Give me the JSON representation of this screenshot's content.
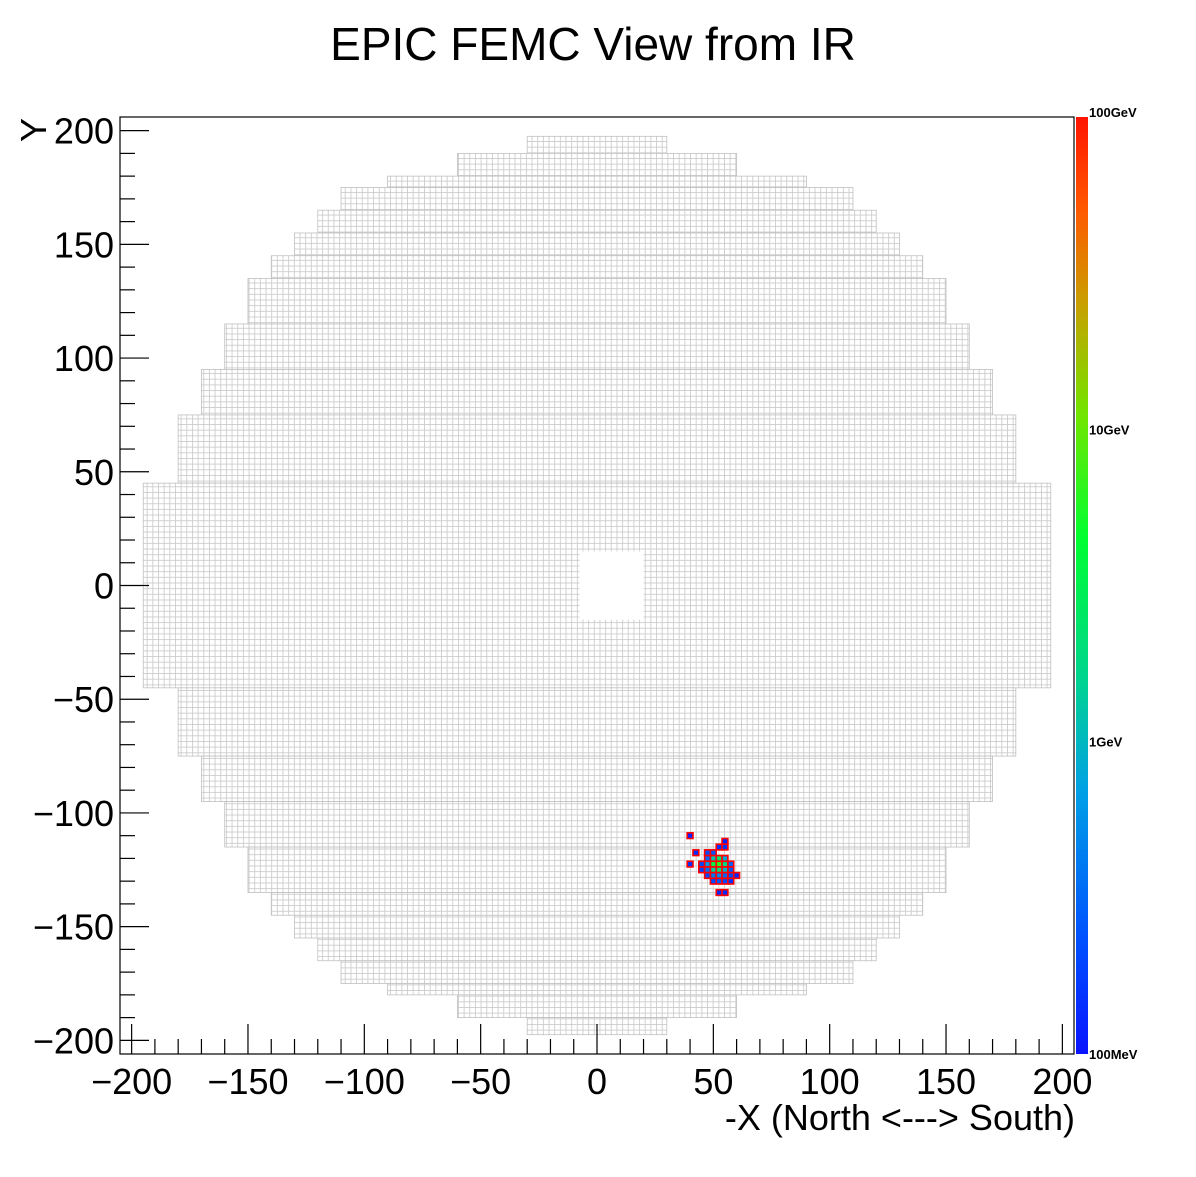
{
  "chart_data": {
    "type": "heatmap",
    "title": "EPIC FEMC View from IR",
    "xlabel": "-X (North <---> South)",
    "ylabel": "Y",
    "xlim": [
      -205,
      205
    ],
    "ylim": [
      -206,
      206
    ],
    "xticks": [
      -200,
      -150,
      -100,
      -50,
      0,
      50,
      100,
      150,
      200
    ],
    "yticks": [
      -200,
      -150,
      -100,
      -50,
      0,
      50,
      100,
      150,
      200
    ],
    "tick_labels_x": [
      "−200",
      "−150",
      "−100",
      "−50",
      "0",
      "50",
      "100",
      "150",
      "200"
    ],
    "tick_labels_y": [
      "−200",
      "−150",
      "−100",
      "−50",
      "0",
      "50",
      "100",
      "150",
      "200"
    ],
    "colorbar": {
      "scale": "log",
      "range_gev": [
        0.1,
        100
      ],
      "labels": [
        {
          "text": "100GeV",
          "value_gev": 100
        },
        {
          "text": "10GeV",
          "value_gev": 10
        },
        {
          "text": "1GeV",
          "value_gev": 1
        },
        {
          "text": "100MeV",
          "value_gev": 0.1
        }
      ]
    },
    "detector": {
      "tower_size": 2.5,
      "outline_color": "#c8c8c8",
      "beam_hole": {
        "x": [
          -7.5,
          20
        ],
        "y": [
          -15,
          15
        ]
      },
      "row_extents": [
        {
          "y": [
            190,
            197.5
          ],
          "x": [
            -30,
            30
          ]
        },
        {
          "y": [
            180,
            190
          ],
          "x": [
            -60,
            60
          ]
        },
        {
          "y": [
            175,
            180
          ],
          "x": [
            -90,
            90
          ]
        },
        {
          "y": [
            165,
            175
          ],
          "x": [
            -110,
            110
          ]
        },
        {
          "y": [
            155,
            165
          ],
          "x": [
            -120,
            120
          ]
        },
        {
          "y": [
            145,
            155
          ],
          "x": [
            -130,
            130
          ]
        },
        {
          "y": [
            135,
            145
          ],
          "x": [
            -140,
            140
          ]
        },
        {
          "y": [
            115,
            135
          ],
          "x": [
            -150,
            150
          ]
        },
        {
          "y": [
            95,
            115
          ],
          "x": [
            -160,
            160
          ]
        },
        {
          "y": [
            75,
            95
          ],
          "x": [
            -170,
            170
          ]
        },
        {
          "y": [
            45,
            75
          ],
          "x": [
            -180,
            180
          ]
        },
        {
          "y": [
            -45,
            45
          ],
          "x": [
            -195,
            195
          ]
        },
        {
          "y": [
            -75,
            -45
          ],
          "x": [
            -180,
            180
          ]
        },
        {
          "y": [
            -95,
            -75
          ],
          "x": [
            -170,
            170
          ]
        },
        {
          "y": [
            -115,
            -95
          ],
          "x": [
            -160,
            160
          ]
        },
        {
          "y": [
            -135,
            -115
          ],
          "x": [
            -150,
            150
          ]
        },
        {
          "y": [
            -145,
            -135
          ],
          "x": [
            -140,
            140
          ]
        },
        {
          "y": [
            -155,
            -145
          ],
          "x": [
            -130,
            130
          ]
        },
        {
          "y": [
            -165,
            -155
          ],
          "x": [
            -120,
            120
          ]
        },
        {
          "y": [
            -175,
            -165
          ],
          "x": [
            -110,
            110
          ]
        },
        {
          "y": [
            -180,
            -175
          ],
          "x": [
            -90,
            90
          ]
        },
        {
          "y": [
            -190,
            -180
          ],
          "x": [
            -60,
            60
          ]
        },
        {
          "y": [
            -197.5,
            -190
          ],
          "x": [
            -30,
            30
          ]
        }
      ]
    },
    "hits": [
      {
        "x": 40,
        "y": -110,
        "e_gev": 0.12
      },
      {
        "x": 40,
        "y": -122.5,
        "e_gev": 0.15
      },
      {
        "x": 42.5,
        "y": -117.5,
        "e_gev": 0.14
      },
      {
        "x": 45,
        "y": -122.5,
        "e_gev": 0.2
      },
      {
        "x": 45,
        "y": -125,
        "e_gev": 0.18
      },
      {
        "x": 47.5,
        "y": -117.5,
        "e_gev": 0.22
      },
      {
        "x": 47.5,
        "y": -120,
        "e_gev": 0.3
      },
      {
        "x": 47.5,
        "y": -122.5,
        "e_gev": 0.6
      },
      {
        "x": 47.5,
        "y": -125,
        "e_gev": 0.35
      },
      {
        "x": 47.5,
        "y": -127.5,
        "e_gev": 0.2
      },
      {
        "x": 50,
        "y": -117.5,
        "e_gev": 0.25
      },
      {
        "x": 50,
        "y": -120,
        "e_gev": 1.2
      },
      {
        "x": 50,
        "y": -122.5,
        "e_gev": 3.5
      },
      {
        "x": 50,
        "y": -125,
        "e_gev": 1.5
      },
      {
        "x": 50,
        "y": -127.5,
        "e_gev": 0.4
      },
      {
        "x": 50,
        "y": -130,
        "e_gev": 0.2
      },
      {
        "x": 52.5,
        "y": -115,
        "e_gev": 0.15
      },
      {
        "x": 52.5,
        "y": -120,
        "e_gev": 2.5
      },
      {
        "x": 52.5,
        "y": -122.5,
        "e_gev": 6
      },
      {
        "x": 52.5,
        "y": -125,
        "e_gev": 2.2
      },
      {
        "x": 52.5,
        "y": -127.5,
        "e_gev": 0.5
      },
      {
        "x": 52.5,
        "y": -130,
        "e_gev": 0.25
      },
      {
        "x": 52.5,
        "y": -135,
        "e_gev": 0.13
      },
      {
        "x": 55,
        "y": -112.5,
        "e_gev": 0.12
      },
      {
        "x": 55,
        "y": -115,
        "e_gev": 0.16
      },
      {
        "x": 55,
        "y": -120,
        "e_gev": 0.8
      },
      {
        "x": 55,
        "y": -122.5,
        "e_gev": 1.8
      },
      {
        "x": 55,
        "y": -125,
        "e_gev": 0.9
      },
      {
        "x": 55,
        "y": -127.5,
        "e_gev": 0.3
      },
      {
        "x": 55,
        "y": -130,
        "e_gev": 0.2
      },
      {
        "x": 55,
        "y": -135,
        "e_gev": 0.14
      },
      {
        "x": 57.5,
        "y": -122.5,
        "e_gev": 0.3
      },
      {
        "x": 57.5,
        "y": -125,
        "e_gev": 0.25
      },
      {
        "x": 57.5,
        "y": -127.5,
        "e_gev": 0.2
      },
      {
        "x": 57.5,
        "y": -130,
        "e_gev": 0.15
      },
      {
        "x": 60,
        "y": -127.5,
        "e_gev": 0.13
      }
    ],
    "hit_outline_color": "#ff0000"
  }
}
